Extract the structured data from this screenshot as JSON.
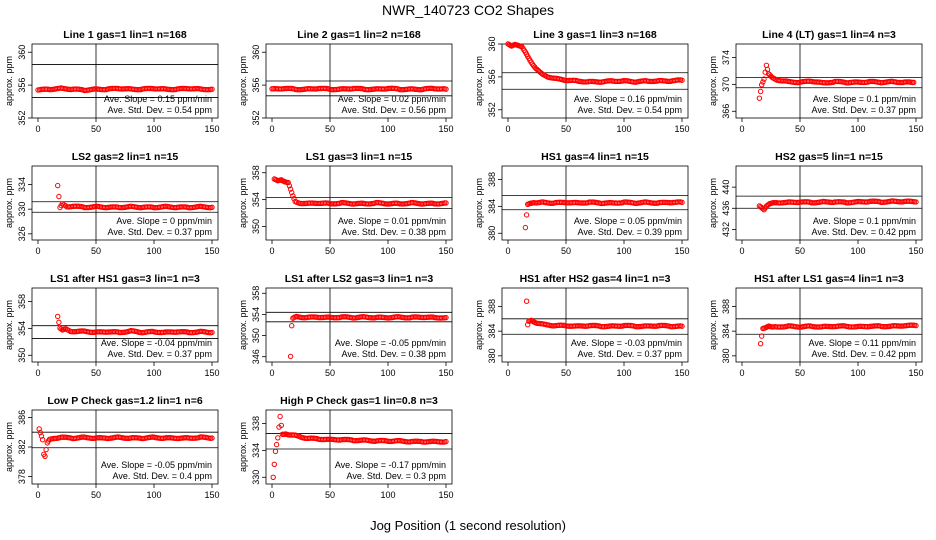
{
  "page_title": "NWR_140723  CO2 Shapes",
  "x_title": "Jog Position (1 second resolution)",
  "chart_data": [
    {
      "type": "scatter",
      "title": "Line 1 gas=1 lin=1 n=168",
      "ylabel": "approx. ppm",
      "xlim": [
        0,
        150
      ],
      "ylim": [
        352,
        361
      ],
      "yticks": [
        352,
        356,
        360
      ],
      "xticks": [
        0,
        50,
        100,
        150
      ],
      "hlines": [
        358.5,
        354.5
      ],
      "marker_color": "#ff0000",
      "slope": "Ave. Slope = 0.15 ppm/min",
      "stddev": "Ave. Std. Dev. = 0.54 ppm",
      "series": [
        {
          "x": [
            0,
            10,
            20,
            30,
            40,
            50,
            60,
            70,
            80,
            90,
            100,
            110,
            120,
            130,
            140,
            150
          ],
          "y": [
            355.4,
            355.5,
            355.6,
            355.5,
            355.4,
            355.5,
            355.5,
            355.6,
            355.5,
            355.5,
            355.6,
            355.5,
            355.5,
            355.6,
            355.5,
            355.5
          ]
        }
      ]
    },
    {
      "type": "scatter",
      "title": "Line 2 gas=1 lin=2 n=168",
      "ylabel": "approx. ppm",
      "xlim": [
        0,
        150
      ],
      "ylim": [
        352,
        361
      ],
      "yticks": [
        352,
        356,
        360
      ],
      "xticks": [
        0,
        50,
        100,
        150
      ],
      "hlines": [
        356.5,
        354.7
      ],
      "marker_color": "#ff0000",
      "slope": "Ave. Slope = 0.02 ppm/min",
      "stddev": "Ave. Std. Dev. = 0.56 ppm",
      "series": [
        {
          "x": [
            0,
            10,
            20,
            30,
            40,
            50,
            60,
            70,
            80,
            90,
            100,
            110,
            120,
            130,
            140,
            150
          ],
          "y": [
            355.5,
            355.6,
            355.5,
            355.5,
            355.6,
            355.5,
            355.5,
            355.6,
            355.5,
            355.5,
            355.6,
            355.5,
            355.5,
            355.5,
            355.6,
            355.5
          ]
        }
      ]
    },
    {
      "type": "scatter",
      "title": "Line 3 gas=1 lin=3 n=168",
      "ylabel": "approx. ppm",
      "xlim": [
        0,
        150
      ],
      "ylim": [
        351,
        360
      ],
      "yticks": [
        352,
        356,
        360
      ],
      "xticks": [
        0,
        50,
        100,
        150
      ],
      "hlines": [
        356.5,
        354.5
      ],
      "marker_color": "#ff0000",
      "slope": "Ave. Slope = 0.16 ppm/min",
      "stddev": "Ave. Std. Dev. = 0.54 ppm",
      "series": [
        {
          "x": [
            0,
            3,
            6,
            9,
            12,
            15,
            18,
            21,
            24,
            27,
            30,
            35,
            40,
            50,
            60,
            70,
            80,
            90,
            100,
            110,
            120,
            130,
            140,
            150
          ],
          "y": [
            360,
            359.8,
            360,
            359.8,
            359.6,
            359,
            358.3,
            357.6,
            357,
            356.6,
            356.3,
            356,
            355.8,
            355.6,
            355.5,
            355.4,
            355.4,
            355.5,
            355.5,
            355.4,
            355.5,
            355.5,
            355.5,
            355.6
          ]
        }
      ]
    },
    {
      "type": "scatter",
      "title": "Line 4 (LT) gas=1 lin=4 n=3",
      "ylabel": "approx. ppm",
      "xlim": [
        0,
        150
      ],
      "ylim": [
        365,
        376
      ],
      "yticks": [
        366,
        370,
        374
      ],
      "xticks": [
        0,
        50,
        100,
        150
      ],
      "hlines": [
        371,
        369.5
      ],
      "marker_color": "#ff0000",
      "slope": "Ave. Slope = 0.1 ppm/min",
      "stddev": "Ave. Std. Dev. = 0.37 ppm",
      "series": [
        {
          "x": [
            15,
            17,
            19,
            21,
            23,
            26,
            30,
            35,
            40,
            50,
            60,
            70,
            80,
            90,
            100,
            110,
            120,
            130,
            140,
            148
          ],
          "y": [
            368,
            370,
            370.8,
            372.8,
            371.5,
            371,
            370.7,
            370.5,
            370.4,
            370.3,
            370.5,
            370.2,
            370.4,
            370.3,
            370.3,
            370.4,
            370.3,
            370.4,
            370.3,
            370.3
          ]
        }
      ]
    },
    {
      "type": "scatter",
      "title": "LS2 gas=2 lin=1 n=15",
      "ylabel": "approx. ppm",
      "xlim": [
        0,
        150
      ],
      "ylim": [
        325,
        337
      ],
      "yticks": [
        326,
        330,
        334
      ],
      "xticks": [
        0,
        50,
        100,
        150
      ],
      "hlines": [
        331.2,
        329.5
      ],
      "marker_color": "#ff0000",
      "slope": "Ave. Slope = 0 ppm/min",
      "stddev": "Ave. Std. Dev. = 0.37 ppm",
      "series": [
        {
          "x": [
            17,
            19,
            21,
            25,
            30,
            40,
            50,
            60,
            70,
            80,
            90,
            100,
            110,
            120,
            130,
            140,
            150
          ],
          "y": [
            333.8,
            330.2,
            330.8,
            330.4,
            330.5,
            330.3,
            330.4,
            330.3,
            330.3,
            330.4,
            330.3,
            330.3,
            330.4,
            330.3,
            330.3,
            330.4,
            330.3
          ]
        }
      ]
    },
    {
      "type": "scatter",
      "title": "LS1 gas=3 lin=1 n=15",
      "ylabel": "approx. ppm",
      "xlim": [
        0,
        150
      ],
      "ylim": [
        348,
        359
      ],
      "yticks": [
        350,
        354,
        358
      ],
      "xticks": [
        0,
        50,
        100,
        150
      ],
      "hlines": [
        354.3,
        352.7
      ],
      "marker_color": "#ff0000",
      "slope": "Ave. Slope = 0.01 ppm/min",
      "stddev": "Ave. Std. Dev. = 0.38 ppm",
      "series": [
        {
          "x": [
            2,
            5,
            8,
            11,
            14,
            16,
            18,
            20,
            24,
            30,
            40,
            50,
            60,
            70,
            80,
            90,
            100,
            110,
            120,
            130,
            140,
            150
          ],
          "y": [
            357,
            356.8,
            357,
            356.7,
            356.5,
            355.5,
            354.5,
            353.7,
            353.5,
            353.4,
            353.5,
            353.4,
            353.5,
            353.4,
            353.4,
            353.5,
            353.4,
            353.4,
            353.5,
            353.4,
            353.4,
            353.5
          ]
        }
      ]
    },
    {
      "type": "scatter",
      "title": "HS1 gas=4 lin=1 n=15",
      "ylabel": "approx. ppm",
      "xlim": [
        0,
        150
      ],
      "ylim": [
        379,
        390
      ],
      "yticks": [
        380,
        384,
        388
      ],
      "xticks": [
        0,
        50,
        100,
        150
      ],
      "hlines": [
        385.6,
        383.5
      ],
      "marker_color": "#ff0000",
      "slope": "Ave. Slope = 0.05 ppm/min",
      "stddev": "Ave. Std. Dev. = 0.39 ppm",
      "series": [
        {
          "x": [
            15,
            16,
            17,
            19,
            22,
            26,
            30,
            40,
            50,
            60,
            70,
            80,
            90,
            100,
            110,
            120,
            130,
            140,
            150
          ],
          "y": [
            380.8,
            382.7,
            384.3,
            384.5,
            384.6,
            384.5,
            384.6,
            384.5,
            384.6,
            384.5,
            384.6,
            384.5,
            384.5,
            384.6,
            384.5,
            384.6,
            384.5,
            384.6,
            384.6
          ]
        }
      ]
    },
    {
      "type": "scatter",
      "title": "HS2 gas=5 lin=1 n=15",
      "ylabel": "approx. ppm",
      "xlim": [
        0,
        150
      ],
      "ylim": [
        430,
        444
      ],
      "yticks": [
        432,
        436,
        440
      ],
      "xticks": [
        0,
        50,
        100,
        150
      ],
      "hlines": [
        438.3,
        436
      ],
      "marker_color": "#ff0000",
      "slope": "Ave. Slope = 0.1 ppm/min",
      "stddev": "Ave. Std. Dev. = 0.42 ppm",
      "series": [
        {
          "x": [
            15,
            17,
            19,
            21,
            24,
            27,
            30,
            40,
            50,
            60,
            70,
            80,
            90,
            100,
            110,
            120,
            130,
            140,
            150
          ],
          "y": [
            436.5,
            436.2,
            435.8,
            436.4,
            436.8,
            437,
            437.1,
            437.1,
            437.2,
            437.1,
            437.2,
            437.2,
            437.1,
            437.2,
            437.3,
            437.2,
            437.3,
            437.3,
            437.2
          ]
        }
      ]
    },
    {
      "type": "scatter",
      "title": "LS1 after HS1 gas=3 lin=1 n=3",
      "ylabel": "approx. ppm",
      "xlim": [
        0,
        150
      ],
      "ylim": [
        349,
        360
      ],
      "yticks": [
        350,
        354,
        358
      ],
      "xticks": [
        0,
        50,
        100,
        150
      ],
      "hlines": [
        354.4,
        352.5
      ],
      "marker_color": "#ff0000",
      "slope": "Ave. Slope = -0.04 ppm/min",
      "stddev": "Ave. Std. Dev. = 0.37 ppm",
      "series": [
        {
          "x": [
            17,
            19,
            21,
            24,
            28,
            35,
            40,
            50,
            60,
            70,
            80,
            90,
            100,
            110,
            120,
            130,
            140,
            150
          ],
          "y": [
            355.8,
            354,
            353.7,
            353.9,
            353.6,
            353.5,
            353.6,
            353.4,
            353.5,
            353.4,
            353.6,
            353.4,
            353.5,
            353.4,
            353.5,
            353.4,
            353.5,
            353.4
          ]
        }
      ]
    },
    {
      "type": "scatter",
      "title": "LS1 after LS2 gas=3 lin=1 n=3",
      "ylabel": "approx. ppm",
      "xlim": [
        0,
        150
      ],
      "ylim": [
        345,
        359
      ],
      "yticks": [
        346,
        350,
        354,
        358
      ],
      "xticks": [
        0,
        50,
        100,
        150
      ],
      "hlines": [
        354.4,
        352.6
      ],
      "marker_color": "#ff0000",
      "slope": "Ave. Slope = -0.05 ppm/min",
      "stddev": "Ave. Std. Dev. = 0.38 ppm",
      "series": [
        {
          "x": [
            16,
            17,
            18,
            21,
            25,
            30,
            40,
            50,
            60,
            70,
            80,
            90,
            100,
            110,
            120,
            130,
            140,
            150
          ],
          "y": [
            346,
            351.8,
            353.2,
            353.6,
            353.5,
            353.4,
            353.5,
            353.4,
            353.5,
            353.4,
            353.5,
            353.4,
            353.4,
            353.5,
            353.4,
            353.5,
            353.4,
            353.4
          ]
        }
      ]
    },
    {
      "type": "scatter",
      "title": "HS1 after HS2 gas=4 lin=1 n=3",
      "ylabel": "approx. ppm",
      "xlim": [
        0,
        150
      ],
      "ylim": [
        379,
        391
      ],
      "yticks": [
        380,
        384,
        388
      ],
      "xticks": [
        0,
        50,
        100,
        150
      ],
      "hlines": [
        386,
        383.5
      ],
      "marker_color": "#ff0000",
      "slope": "Ave. Slope = -0.03 ppm/min",
      "stddev": "Ave. Std. Dev. = 0.37 ppm",
      "series": [
        {
          "x": [
            16,
            17,
            18,
            20,
            22,
            25,
            30,
            40,
            50,
            60,
            70,
            80,
            90,
            100,
            110,
            120,
            130,
            140,
            150
          ],
          "y": [
            388.8,
            385,
            385.6,
            385.8,
            385.6,
            385.3,
            385.1,
            384.9,
            384.9,
            384.8,
            384.9,
            384.8,
            384.8,
            384.9,
            384.8,
            384.8,
            384.9,
            384.8,
            384.8
          ]
        }
      ]
    },
    {
      "type": "scatter",
      "title": "HS1 after LS1 gas=4 lin=1 n=3",
      "ylabel": "approx. ppm",
      "xlim": [
        0,
        150
      ],
      "ylim": [
        379,
        391
      ],
      "yticks": [
        380,
        384,
        388
      ],
      "xticks": [
        0,
        50,
        100,
        150
      ],
      "hlines": [
        386,
        383.5
      ],
      "marker_color": "#ff0000",
      "slope": "Ave. Slope = 0.11 ppm/min",
      "stddev": "Ave. Std. Dev. = 0.42 ppm",
      "series": [
        {
          "x": [
            16,
            18,
            20,
            23,
            26,
            30,
            40,
            50,
            60,
            70,
            80,
            90,
            100,
            110,
            120,
            130,
            140,
            150
          ],
          "y": [
            382,
            384.5,
            384.6,
            384.8,
            384.6,
            384.7,
            384.8,
            384.7,
            384.8,
            384.7,
            384.8,
            384.8,
            384.7,
            384.8,
            384.8,
            384.8,
            384.9,
            384.9
          ]
        }
      ]
    },
    {
      "type": "scatter",
      "title": "Low P Check gas=1.2 lin=1 n=6",
      "ylabel": "approx. ppm",
      "xlim": [
        0,
        150
      ],
      "ylim": [
        377,
        387
      ],
      "yticks": [
        378,
        382,
        386
      ],
      "xticks": [
        0,
        50,
        100,
        150
      ],
      "hlines": [
        384,
        381.9
      ],
      "marker_color": "#ff0000",
      "slope": "Ave. Slope = -0.05 ppm/min",
      "stddev": "Ave. Std. Dev. = 0.4 ppm",
      "series": [
        {
          "x": [
            1,
            2,
            3,
            4,
            5,
            6,
            8,
            10,
            14,
            20,
            30,
            40,
            50,
            60,
            70,
            80,
            90,
            100,
            110,
            120,
            130,
            140,
            150
          ],
          "y": [
            384.5,
            384,
            383.5,
            383,
            381,
            380.7,
            382.5,
            383,
            383.2,
            383.3,
            383.2,
            383.3,
            383.2,
            383.2,
            383.3,
            383.2,
            383.2,
            383.3,
            383.2,
            383.2,
            383.2,
            383.3,
            383.2
          ]
        }
      ]
    },
    {
      "type": "scatter",
      "title": "High P Check gas=1 lin=0.8 n=3",
      "ylabel": "approx. ppm",
      "xlim": [
        0,
        150
      ],
      "ylim": [
        329,
        340
      ],
      "yticks": [
        330,
        334,
        338
      ],
      "xticks": [
        0,
        50,
        100,
        150
      ],
      "hlines": [
        336.5,
        334.2
      ],
      "marker_color": "#ff0000",
      "slope": "Ave. Slope = -0.17 ppm/min",
      "stddev": "Ave. Std. Dev. = 0.3 ppm",
      "series": [
        {
          "x": [
            1,
            3,
            5,
            7,
            9,
            12,
            15,
            20,
            25,
            30,
            40,
            50,
            60,
            70,
            80,
            90,
            100,
            110,
            120,
            130,
            140,
            150
          ],
          "y": [
            330,
            333.8,
            335.8,
            339,
            336.4,
            336.5,
            336.3,
            336.2,
            336,
            335.8,
            335.7,
            335.6,
            335.6,
            335.5,
            335.5,
            335.4,
            335.4,
            335.4,
            335.3,
            335.3,
            335.3,
            335.3
          ]
        }
      ]
    }
  ]
}
